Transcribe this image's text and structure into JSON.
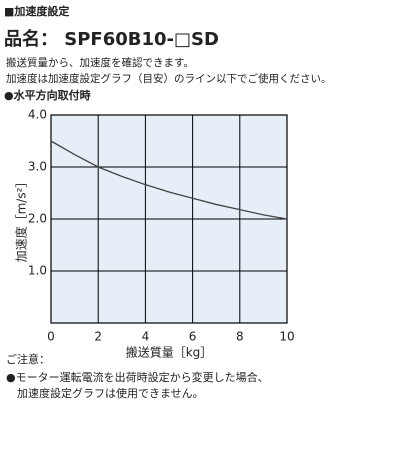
{
  "heading": "■加速度設定",
  "product": "品名： SPF60B10-□SD",
  "intro": [
    "搬送質量から、加速度を確認できます。",
    "加速度は加速度設定グラフ（目安）のライン以下でご使用ください。"
  ],
  "section": "●水平方向取付時",
  "notes": {
    "title": "ご注意：",
    "lines": [
      "●モーター運転電流を出荷時設定から変更した場合、",
      "　加速度設定グラフは使用できません。"
    ]
  },
  "chart_data": {
    "type": "line",
    "x_label": "搬送質量［kg］",
    "y_label": "加速度［m/s²］",
    "x": [
      0,
      1,
      2,
      3,
      4,
      5,
      6,
      7,
      8,
      9,
      10
    ],
    "series": [
      {
        "color": "#444444",
        "values": [
          3.5,
          3.24,
          3.0,
          2.82,
          2.66,
          2.52,
          2.4,
          2.28,
          2.18,
          2.08,
          2.0
        ]
      }
    ],
    "xlim": [
      0,
      10
    ],
    "xticks": [
      0,
      2,
      4,
      6,
      8,
      10
    ],
    "ylim": [
      0,
      4
    ],
    "yticks": [
      {
        "value": 1,
        "label": "1.0"
      },
      {
        "value": 2,
        "label": "2.0"
      },
      {
        "value": 3,
        "label": "3.0"
      },
      {
        "value": 4,
        "label": "4.0"
      }
    ],
    "grid": true,
    "background": "#e6eef7"
  }
}
